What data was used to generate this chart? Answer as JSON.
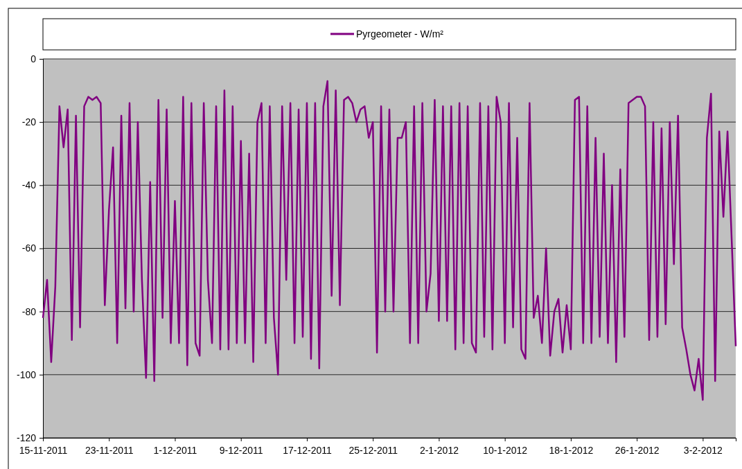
{
  "chart_data": {
    "type": "line",
    "legend": "top",
    "grid": "y",
    "xlim": [
      "2011-11-15",
      "2012-02-07"
    ],
    "ylim": [
      -120,
      0
    ],
    "yticks": [
      -120,
      -100,
      -80,
      -60,
      -40,
      -20,
      0
    ],
    "xticks": [
      {
        "value": "2011-11-15",
        "label": "15-11-2011"
      },
      {
        "value": "2011-11-23",
        "label": "23-11-2011"
      },
      {
        "value": "2011-12-01",
        "label": "1-12-2011"
      },
      {
        "value": "2011-12-09",
        "label": "9-12-2011"
      },
      {
        "value": "2011-12-17",
        "label": "17-12-2011"
      },
      {
        "value": "2011-12-25",
        "label": "25-12-2011"
      },
      {
        "value": "2012-01-02",
        "label": "2-1-2012"
      },
      {
        "value": "2012-01-10",
        "label": "10-1-2012"
      },
      {
        "value": "2012-01-18",
        "label": "18-1-2012"
      },
      {
        "value": "2012-01-26",
        "label": "26-1-2012"
      },
      {
        "value": "2012-02-03",
        "label": "3-2-2012"
      }
    ],
    "x": [
      "2011-11-15T00:00",
      "2011-11-15T12:00",
      "2011-11-16T00:00",
      "2011-11-16T12:00",
      "2011-11-17T00:00",
      "2011-11-17T12:00",
      "2011-11-18T00:00",
      "2011-11-18T12:00",
      "2011-11-19T00:00",
      "2011-11-19T12:00",
      "2011-11-20T00:00",
      "2011-11-20T12:00",
      "2011-11-21T00:00",
      "2011-11-21T12:00",
      "2011-11-22T00:00",
      "2011-11-22T12:00",
      "2011-11-23T00:00",
      "2011-11-23T12:00",
      "2011-11-24T00:00",
      "2011-11-24T12:00",
      "2011-11-25T00:00",
      "2011-11-25T12:00",
      "2011-11-26T00:00",
      "2011-11-26T12:00",
      "2011-11-27T00:00",
      "2011-11-27T12:00",
      "2011-11-28T00:00",
      "2011-11-28T12:00",
      "2011-11-29T00:00",
      "2011-11-29T12:00",
      "2011-11-30T00:00",
      "2011-11-30T12:00",
      "2011-12-01T00:00",
      "2011-12-01T12:00",
      "2011-12-02T00:00",
      "2011-12-02T12:00",
      "2011-12-03T00:00",
      "2011-12-03T12:00",
      "2011-12-04T00:00",
      "2011-12-04T12:00",
      "2011-12-05T00:00",
      "2011-12-05T12:00",
      "2011-12-06T00:00",
      "2011-12-06T12:00",
      "2011-12-07T00:00",
      "2011-12-07T12:00",
      "2011-12-08T00:00",
      "2011-12-08T12:00",
      "2011-12-09T00:00",
      "2011-12-09T12:00",
      "2011-12-10T00:00",
      "2011-12-10T12:00",
      "2011-12-11T00:00",
      "2011-12-11T12:00",
      "2011-12-12T00:00",
      "2011-12-12T12:00",
      "2011-12-13T00:00",
      "2011-12-13T12:00",
      "2011-12-14T00:00",
      "2011-12-14T12:00",
      "2011-12-15T00:00",
      "2011-12-15T12:00",
      "2011-12-16T00:00",
      "2011-12-16T12:00",
      "2011-12-17T00:00",
      "2011-12-17T12:00",
      "2011-12-18T00:00",
      "2011-12-18T12:00",
      "2011-12-19T00:00",
      "2011-12-19T12:00",
      "2011-12-20T00:00",
      "2011-12-20T12:00",
      "2011-12-21T00:00",
      "2011-12-21T12:00",
      "2011-12-22T00:00",
      "2011-12-22T12:00",
      "2011-12-23T00:00",
      "2011-12-23T12:00",
      "2011-12-24T00:00",
      "2011-12-24T12:00",
      "2011-12-25T00:00",
      "2011-12-25T12:00",
      "2011-12-26T00:00",
      "2011-12-26T12:00",
      "2011-12-27T00:00",
      "2011-12-27T12:00",
      "2011-12-28T00:00",
      "2011-12-28T12:00",
      "2011-12-29T00:00",
      "2011-12-29T12:00",
      "2011-12-30T00:00",
      "2011-12-30T12:00",
      "2011-12-31T00:00",
      "2011-12-31T12:00",
      "2012-01-01T00:00",
      "2012-01-01T12:00",
      "2012-01-02T00:00",
      "2012-01-02T12:00",
      "2012-01-03T00:00",
      "2012-01-03T12:00",
      "2012-01-04T00:00",
      "2012-01-04T12:00",
      "2012-01-05T00:00",
      "2012-01-05T12:00",
      "2012-01-06T00:00",
      "2012-01-06T12:00",
      "2012-01-07T00:00",
      "2012-01-07T12:00",
      "2012-01-08T00:00",
      "2012-01-08T12:00",
      "2012-01-09T00:00",
      "2012-01-09T12:00",
      "2012-01-10T00:00",
      "2012-01-10T12:00",
      "2012-01-11T00:00",
      "2012-01-11T12:00",
      "2012-01-12T00:00",
      "2012-01-12T12:00",
      "2012-01-13T00:00",
      "2012-01-13T12:00",
      "2012-01-14T00:00",
      "2012-01-14T12:00",
      "2012-01-15T00:00",
      "2012-01-15T12:00",
      "2012-01-16T00:00",
      "2012-01-16T12:00",
      "2012-01-17T00:00",
      "2012-01-17T12:00",
      "2012-01-18T00:00",
      "2012-01-18T12:00",
      "2012-01-19T00:00",
      "2012-01-19T12:00",
      "2012-01-20T00:00",
      "2012-01-20T12:00",
      "2012-01-21T00:00",
      "2012-01-21T12:00",
      "2012-01-22T00:00",
      "2012-01-22T12:00",
      "2012-01-23T00:00",
      "2012-01-23T12:00",
      "2012-01-24T00:00",
      "2012-01-24T12:00",
      "2012-01-25T00:00",
      "2012-01-25T12:00",
      "2012-01-26T00:00",
      "2012-01-26T12:00",
      "2012-01-27T00:00",
      "2012-01-27T12:00",
      "2012-01-28T00:00",
      "2012-01-28T12:00",
      "2012-01-29T00:00",
      "2012-01-29T12:00",
      "2012-01-30T00:00",
      "2012-01-30T12:00",
      "2012-01-31T00:00",
      "2012-01-31T12:00",
      "2012-02-01T00:00",
      "2012-02-01T12:00",
      "2012-02-02T00:00",
      "2012-02-02T12:00",
      "2012-02-03T00:00",
      "2012-02-03T12:00",
      "2012-02-04T00:00",
      "2012-02-04T12:00",
      "2012-02-05T00:00",
      "2012-02-05T12:00",
      "2012-02-06T00:00",
      "2012-02-06T12:00",
      "2012-02-07T00:00"
    ],
    "series": [
      {
        "name": "Pyrgeometer - W/m²",
        "color": "#800080",
        "values": [
          -82,
          -70,
          -96,
          -72,
          -15,
          -28,
          -16,
          -89,
          -18,
          -85,
          -15,
          -12,
          -13,
          -12,
          -14,
          -78,
          -48,
          -28,
          -90,
          -18,
          -79,
          -14,
          -80,
          -20,
          -70,
          -101,
          -39,
          -102,
          -13,
          -82,
          -16,
          -90,
          -45,
          -90,
          -12,
          -97,
          -14,
          -90,
          -94,
          -14,
          -70,
          -90,
          -15,
          -92,
          -10,
          -92,
          -15,
          -90,
          -26,
          -90,
          -30,
          -96,
          -20,
          -14,
          -90,
          -15,
          -82,
          -100,
          -15,
          -70,
          -14,
          -90,
          -16,
          -88,
          -14,
          -95,
          -14,
          -98,
          -15,
          -7,
          -75,
          -10,
          -78,
          -13,
          -12,
          -14,
          -20,
          -16,
          -15,
          -25,
          -20,
          -93,
          -15,
          -80,
          -16,
          -80,
          -25,
          -25,
          -20,
          -90,
          -15,
          -90,
          -14,
          -80,
          -68,
          -13,
          -83,
          -15,
          -83,
          -15,
          -92,
          -14,
          -90,
          -15,
          -90,
          -93,
          -14,
          -88,
          -15,
          -92,
          -12,
          -20,
          -90,
          -14,
          -85,
          -25,
          -92,
          -95,
          -14,
          -82,
          -75,
          -90,
          -60,
          -94,
          -80,
          -76,
          -93,
          -78,
          -92,
          -13,
          -12,
          -90,
          -15,
          -90,
          -25,
          -88,
          -30,
          -90,
          -40,
          -96,
          -35,
          -88,
          -14,
          -13,
          -12,
          -12,
          -15,
          -89,
          -20,
          -88,
          -22,
          -84,
          -20,
          -65,
          -18,
          -85,
          -92,
          -100,
          -105,
          -95,
          -108,
          -25,
          -11,
          -102,
          -23,
          -50,
          -23,
          -57,
          -91
        ]
      }
    ]
  }
}
